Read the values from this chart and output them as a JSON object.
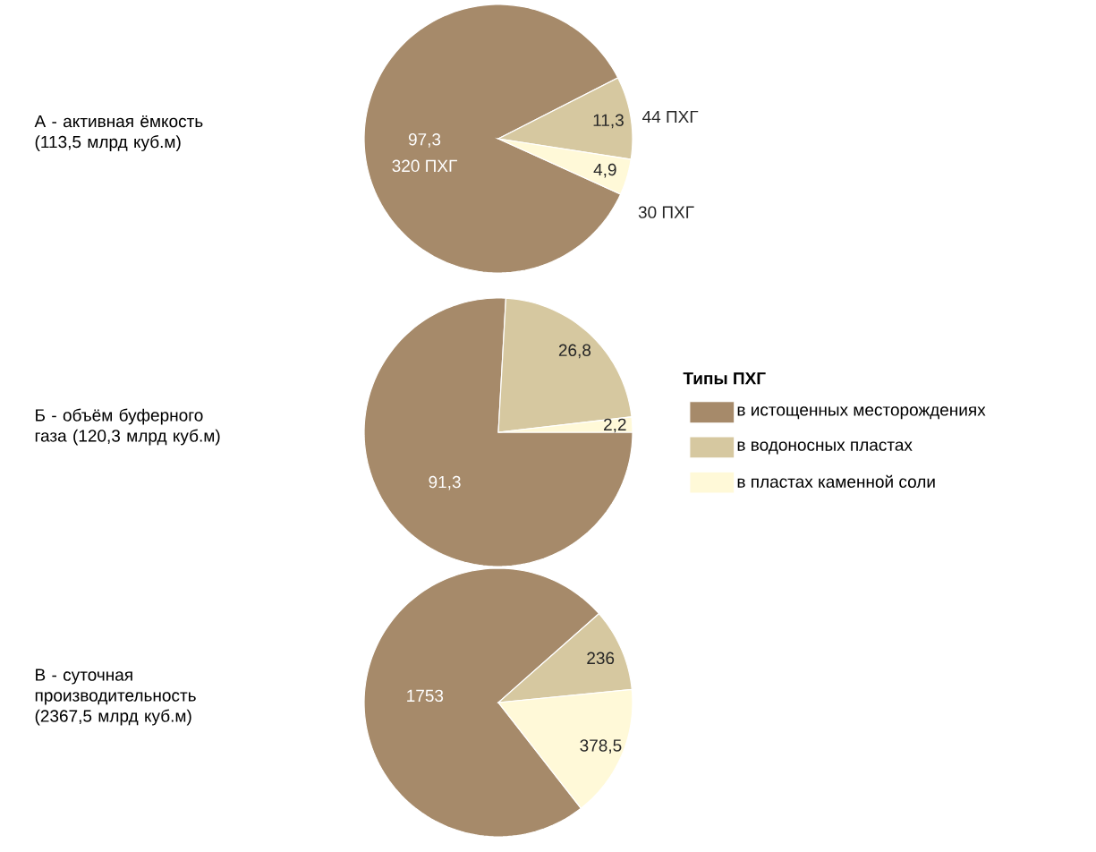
{
  "chart_data": [
    {
      "type": "pie",
      "title": "А - активная ёмкость (113,5 млрд куб.м)",
      "categories": [
        null,
        null,
        null
      ],
      "values": [
        97.3,
        11.3,
        4.9
      ],
      "value_labels": [
        "97,3",
        "11,3",
        "4,9"
      ],
      "colors": [
        "#a68a6a",
        "#d6c8a0",
        "#fff9d8"
      ],
      "annotations": [
        "320 ПХГ",
        "44 ПХГ",
        "30 ПХГ"
      ]
    },
    {
      "type": "pie",
      "title": "Б - объём буферного газа (120,3 млрд куб.м)",
      "legend_title": "Типы ПХГ",
      "legend": "right",
      "categories": [
        "в истощенных месторождениях",
        "в водоносных пластах",
        "в пластах каменной соли"
      ],
      "values": [
        91.3,
        26.8,
        2.2
      ],
      "value_labels": [
        "91,3",
        "26,8",
        "2,2"
      ],
      "colors": [
        "#a68a6a",
        "#d6c8a0",
        "#fff9d8"
      ]
    },
    {
      "type": "pie",
      "title": "В - суточная производительность (2367,5 млрд куб.м)",
      "categories": [
        null,
        null,
        null
      ],
      "values": [
        1753,
        236,
        378.5
      ],
      "value_labels": [
        "1753",
        "236",
        "378,5"
      ],
      "colors": [
        "#a68a6a",
        "#d6c8a0",
        "#fff9d8"
      ]
    }
  ]
}
